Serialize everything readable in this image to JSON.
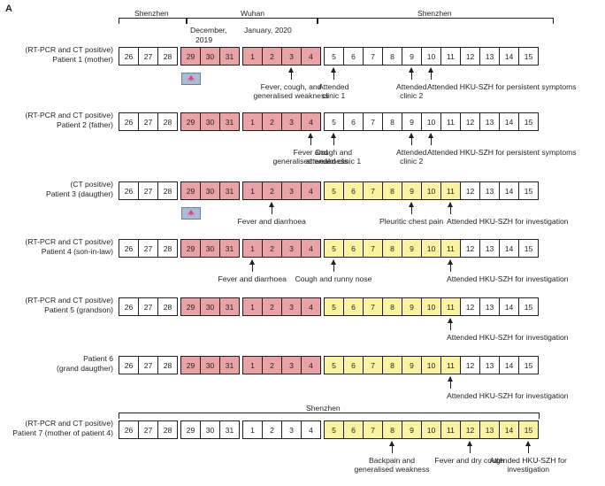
{
  "panel_label": "A",
  "header": {
    "locations": [
      "Shenzhen",
      "Wuhan",
      "Shenzhen"
    ],
    "month_dec": "December,",
    "year_dec": "2019",
    "month_jan": "January, 2020"
  },
  "dates": [
    "26",
    "27",
    "28",
    "29",
    "30",
    "31",
    "1",
    "2",
    "3",
    "4",
    "5",
    "6",
    "7",
    "8",
    "9",
    "10",
    "11",
    "12",
    "13",
    "14",
    "15"
  ],
  "patients": [
    {
      "label_line1": "(RT-PCR and CT positive)",
      "label_line2": "Patient 1 (mother)",
      "colors": [
        "w",
        "w",
        "w",
        "r",
        "r",
        "r",
        "r",
        "r",
        "r",
        "r",
        "w",
        "w",
        "w",
        "w",
        "w",
        "w",
        "w",
        "w",
        "w",
        "w",
        "w"
      ],
      "plane": true,
      "events": [
        {
          "text_lines": [
            "Fever, cough, and",
            "generalised weakness"
          ],
          "at": 8
        },
        {
          "text_lines": [
            "Attended",
            "clinic 1"
          ],
          "at": 10
        },
        {
          "text_lines": [
            "Attended",
            "clinic 2"
          ],
          "at": 14
        },
        {
          "text_lines": [
            "Attended HKU-SZH for persistent symptoms"
          ],
          "at": 15
        }
      ]
    },
    {
      "label_line1": "(RT-PCR and CT positive)",
      "label_line2": "Patient 2 (father)",
      "colors": [
        "w",
        "w",
        "w",
        "r",
        "r",
        "r",
        "r",
        "r",
        "r",
        "r",
        "w",
        "w",
        "w",
        "w",
        "w",
        "w",
        "w",
        "w",
        "w",
        "w",
        "w"
      ],
      "plane": false,
      "events": [
        {
          "text_lines": [
            "Fever and",
            "generalised weakness"
          ],
          "at": 9
        },
        {
          "text_lines": [
            "Cough and",
            "attended clinic 1"
          ],
          "at": 10
        },
        {
          "text_lines": [
            "Attended",
            "clinic 2"
          ],
          "at": 14
        },
        {
          "text_lines": [
            "Attended HKU-SZH for persistent symptoms"
          ],
          "at": 15
        }
      ]
    },
    {
      "label_line1": "(CT positive)",
      "label_line2": "Patient 3 (daugther)",
      "colors": [
        "w",
        "w",
        "w",
        "r",
        "r",
        "r",
        "r",
        "r",
        "r",
        "r",
        "y",
        "y",
        "y",
        "y",
        "y",
        "y",
        "y",
        "w",
        "w",
        "w",
        "w"
      ],
      "plane": true,
      "events": [
        {
          "text_lines": [
            "Fever and diarrhoea"
          ],
          "at": 7
        },
        {
          "text_lines": [
            "Pleuritic chest pain"
          ],
          "at": 14
        },
        {
          "text_lines": [
            "Attended HKU-SZH for investigation"
          ],
          "at": 16
        }
      ]
    },
    {
      "label_line1": "(RT-PCR and CT positive)",
      "label_line2": "Patient 4 (son-in-law)",
      "colors": [
        "w",
        "w",
        "w",
        "r",
        "r",
        "r",
        "r",
        "r",
        "r",
        "r",
        "y",
        "y",
        "y",
        "y",
        "y",
        "y",
        "y",
        "w",
        "w",
        "w",
        "w"
      ],
      "plane": false,
      "events": [
        {
          "text_lines": [
            "Fever and diarrhoea"
          ],
          "at": 6
        },
        {
          "text_lines": [
            "Cough and runny nose"
          ],
          "at": 10
        },
        {
          "text_lines": [
            "Attended HKU-SZH for investigation"
          ],
          "at": 16
        }
      ]
    },
    {
      "label_line1": "(RT-PCR and CT positive)",
      "label_line2": "Patient 5 (grandson)",
      "colors": [
        "w",
        "w",
        "w",
        "r",
        "r",
        "r",
        "r",
        "r",
        "r",
        "r",
        "y",
        "y",
        "y",
        "y",
        "y",
        "y",
        "y",
        "w",
        "w",
        "w",
        "w"
      ],
      "plane": false,
      "events": [
        {
          "text_lines": [
            "Attended HKU-SZH for investigation"
          ],
          "at": 16
        }
      ]
    },
    {
      "label_line1": "Patient 6",
      "label_line2": "(grand daugther)",
      "colors": [
        "w",
        "w",
        "w",
        "r",
        "r",
        "r",
        "r",
        "r",
        "r",
        "r",
        "y",
        "y",
        "y",
        "y",
        "y",
        "y",
        "y",
        "w",
        "w",
        "w",
        "w"
      ],
      "plane": false,
      "events": [
        {
          "text_lines": [
            "Attended HKU-SZH for investigation"
          ],
          "at": 16
        }
      ]
    },
    {
      "label_line1": "(RT-PCR and CT positive)",
      "label_line2": "Patient 7 (mother of patient 4)",
      "colors": [
        "w",
        "w",
        "w",
        "w",
        "w",
        "w",
        "w",
        "w",
        "w",
        "w",
        "y",
        "y",
        "y",
        "y",
        "y",
        "y",
        "y",
        "y",
        "y",
        "y",
        "y"
      ],
      "plane": false,
      "events": [
        {
          "text_lines": [
            "Backpain and",
            "generalised weakness"
          ],
          "at": 13
        },
        {
          "text_lines": [
            "Fever and dry cough"
          ],
          "at": 17
        },
        {
          "text_lines": [
            "Attended HKU-SZH for",
            "investigation"
          ],
          "at": 20
        }
      ]
    }
  ],
  "patient7_header": "Shenzhen",
  "colors": {
    "r": "#e9a2a6",
    "y": "#faf3a0",
    "w": "#ffffff"
  }
}
